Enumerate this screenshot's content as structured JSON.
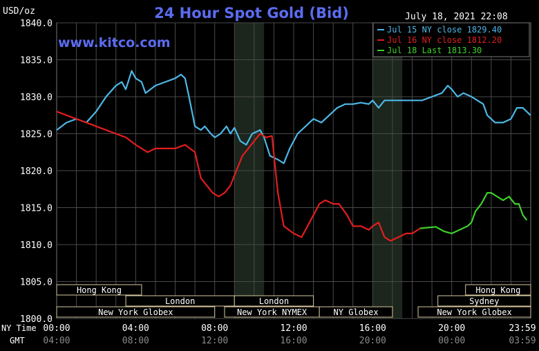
{
  "header": {
    "title": "24 Hour Spot Gold (Bid)",
    "unit": "USD/oz",
    "date": "July 18, 2021 22:08",
    "watermark": "www.kitco.com"
  },
  "colors": {
    "background": "#000000",
    "grid": "#4a4a4a",
    "shade": "#1c261c",
    "title": "#5b6cf0",
    "jul15": "#4db8e8",
    "jul16": "#e31e1e",
    "jul18": "#3fd12b",
    "session_box": "#d8c9a0"
  },
  "chart_data": {
    "type": "line",
    "title": "24 Hour Spot Gold (Bid)",
    "ylabel": "USD/oz",
    "ylim": [
      1800,
      1840
    ],
    "yticks": [
      "1840.0",
      "1835.0",
      "1830.0",
      "1825.0",
      "1820.0",
      "1815.0",
      "1810.0",
      "1805.0",
      "1800.0"
    ],
    "xlim": [
      0,
      24
    ],
    "x_labels_ny": [
      "00:00",
      "04:00",
      "08:00",
      "12:00",
      "16:00",
      "20:00",
      "23:59"
    ],
    "x_labels_gmt": [
      "04:00",
      "08:00",
      "12:00",
      "16:00",
      "20:00",
      "00:00",
      "03:59"
    ],
    "x_label_ny_title": "NY Time",
    "x_label_gmt_title": "GMT",
    "grid": true,
    "legend_position": "top-right",
    "series": [
      {
        "name": "Jul 15 NY close 1829.40",
        "color": "#4db8e8",
        "points": [
          [
            0,
            1825.5
          ],
          [
            0.5,
            1826.5
          ],
          [
            1,
            1827
          ],
          [
            1.5,
            1826.5
          ],
          [
            2,
            1828
          ],
          [
            2.5,
            1830
          ],
          [
            3,
            1831.5
          ],
          [
            3.3,
            1832
          ],
          [
            3.5,
            1831
          ],
          [
            3.8,
            1833.5
          ],
          [
            4,
            1832.5
          ],
          [
            4.3,
            1832
          ],
          [
            4.5,
            1830.5
          ],
          [
            5,
            1831.5
          ],
          [
            5.5,
            1832
          ],
          [
            6,
            1832.5
          ],
          [
            6.3,
            1833
          ],
          [
            6.5,
            1832.5
          ],
          [
            6.7,
            1830
          ],
          [
            7,
            1826
          ],
          [
            7.3,
            1825.5
          ],
          [
            7.5,
            1826
          ],
          [
            7.8,
            1825
          ],
          [
            8,
            1824.5
          ],
          [
            8.3,
            1825
          ],
          [
            8.6,
            1826
          ],
          [
            8.8,
            1825
          ],
          [
            9,
            1825.8
          ],
          [
            9.3,
            1824
          ],
          [
            9.6,
            1823.5
          ],
          [
            9.9,
            1825
          ],
          [
            10.3,
            1825.5
          ],
          [
            10.5,
            1824.5
          ],
          [
            10.8,
            1822
          ],
          [
            11.2,
            1821.5
          ],
          [
            11.5,
            1821
          ],
          [
            11.8,
            1823
          ],
          [
            12.2,
            1825
          ],
          [
            12.6,
            1826
          ],
          [
            13,
            1827
          ],
          [
            13.4,
            1826.5
          ],
          [
            13.8,
            1827.5
          ],
          [
            14.2,
            1828.5
          ],
          [
            14.6,
            1829
          ],
          [
            15,
            1829
          ],
          [
            15.4,
            1829.2
          ],
          [
            15.8,
            1829
          ],
          [
            16,
            1829.5
          ],
          [
            16.3,
            1828.5
          ],
          [
            16.6,
            1829.5
          ],
          [
            17.2,
            1829.5
          ],
          [
            18,
            1829.5
          ],
          [
            18.5,
            1829.5
          ],
          [
            19,
            1830
          ],
          [
            19.5,
            1830.5
          ],
          [
            19.8,
            1831.5
          ],
          [
            20,
            1831
          ],
          [
            20.3,
            1830
          ],
          [
            20.6,
            1830.5
          ],
          [
            21,
            1830
          ],
          [
            21.3,
            1829.5
          ],
          [
            21.6,
            1829
          ],
          [
            21.8,
            1827.5
          ],
          [
            22.2,
            1826.5
          ],
          [
            22.6,
            1826.5
          ],
          [
            23,
            1827
          ],
          [
            23.3,
            1828.5
          ],
          [
            23.6,
            1828.5
          ],
          [
            23.99,
            1827.5
          ]
        ]
      },
      {
        "name": "Jul 16 NY close 1812.20",
        "color": "#e31e1e",
        "points": [
          [
            0,
            1828
          ],
          [
            0.5,
            1827.5
          ],
          [
            1,
            1827
          ],
          [
            1.5,
            1826.5
          ],
          [
            2,
            1826
          ],
          [
            2.5,
            1825.5
          ],
          [
            3,
            1825
          ],
          [
            3.5,
            1824.5
          ],
          [
            4,
            1823.5
          ],
          [
            4.3,
            1823
          ],
          [
            4.6,
            1822.5
          ],
          [
            5,
            1823
          ],
          [
            5.5,
            1823
          ],
          [
            6,
            1823
          ],
          [
            6.5,
            1823.5
          ],
          [
            7,
            1822.5
          ],
          [
            7.3,
            1819
          ],
          [
            7.6,
            1818
          ],
          [
            7.9,
            1817
          ],
          [
            8.2,
            1816.5
          ],
          [
            8.5,
            1817
          ],
          [
            8.8,
            1818
          ],
          [
            9.1,
            1820
          ],
          [
            9.4,
            1822
          ],
          [
            9.7,
            1823
          ],
          [
            10,
            1824
          ],
          [
            10.3,
            1825
          ],
          [
            10.6,
            1824.5
          ],
          [
            10.9,
            1824.7
          ],
          [
            11.2,
            1817
          ],
          [
            11.5,
            1812.5
          ],
          [
            12,
            1811.5
          ],
          [
            12.4,
            1811
          ],
          [
            12.7,
            1812.5
          ],
          [
            13,
            1814
          ],
          [
            13.3,
            1815.5
          ],
          [
            13.6,
            1816
          ],
          [
            14,
            1815.5
          ],
          [
            14.3,
            1815.5
          ],
          [
            14.7,
            1814
          ],
          [
            15,
            1812.5
          ],
          [
            15.4,
            1812.5
          ],
          [
            15.8,
            1812
          ],
          [
            16,
            1812.5
          ],
          [
            16.3,
            1813
          ],
          [
            16.6,
            1811
          ],
          [
            16.9,
            1810.5
          ],
          [
            17.3,
            1811
          ],
          [
            17.7,
            1811.5
          ],
          [
            18,
            1811.5
          ],
          [
            18.4,
            1812.2
          ]
        ]
      },
      {
        "name": "Jul 18 Last 1813.30",
        "color": "#3fd12b",
        "points": [
          [
            18.4,
            1812.2
          ],
          [
            18.8,
            1812.3
          ],
          [
            19.2,
            1812.4
          ],
          [
            19.6,
            1811.8
          ],
          [
            20,
            1811.5
          ],
          [
            20.4,
            1812.0
          ],
          [
            20.8,
            1812.5
          ],
          [
            21,
            1813
          ],
          [
            21.2,
            1814.5
          ],
          [
            21.5,
            1815.5
          ],
          [
            21.8,
            1817
          ],
          [
            22,
            1817
          ],
          [
            22.3,
            1816.5
          ],
          [
            22.6,
            1816
          ],
          [
            22.9,
            1816.5
          ],
          [
            23.2,
            1815.5
          ],
          [
            23.4,
            1815.5
          ],
          [
            23.6,
            1814
          ],
          [
            23.8,
            1813.3
          ]
        ]
      }
    ],
    "shaded_sessions": [
      [
        9,
        10.5
      ],
      [
        16,
        17.5
      ]
    ],
    "sessions": [
      {
        "label": "Hong Kong",
        "x": [
          0,
          4.3
        ]
      },
      {
        "label": "Hong Kong",
        "x": [
          20.7,
          24
        ]
      },
      {
        "label": "London",
        "x": [
          3.5,
          9
        ],
        "row": 2
      },
      {
        "label": "London",
        "x": [
          9,
          13
        ],
        "row": 2
      },
      {
        "label": "Sydney",
        "x": [
          19.3,
          24
        ],
        "row": 2
      },
      {
        "label": "New York Globex",
        "x": [
          0,
          8
        ],
        "row": 3
      },
      {
        "label": "New York NYMEX",
        "x": [
          8.5,
          13.3
        ],
        "row": 3
      },
      {
        "label": "NY Globex",
        "x": [
          13.3,
          17
        ],
        "row": 3
      },
      {
        "label": "New York Globex",
        "x": [
          18.3,
          24
        ],
        "row": 3
      }
    ]
  }
}
